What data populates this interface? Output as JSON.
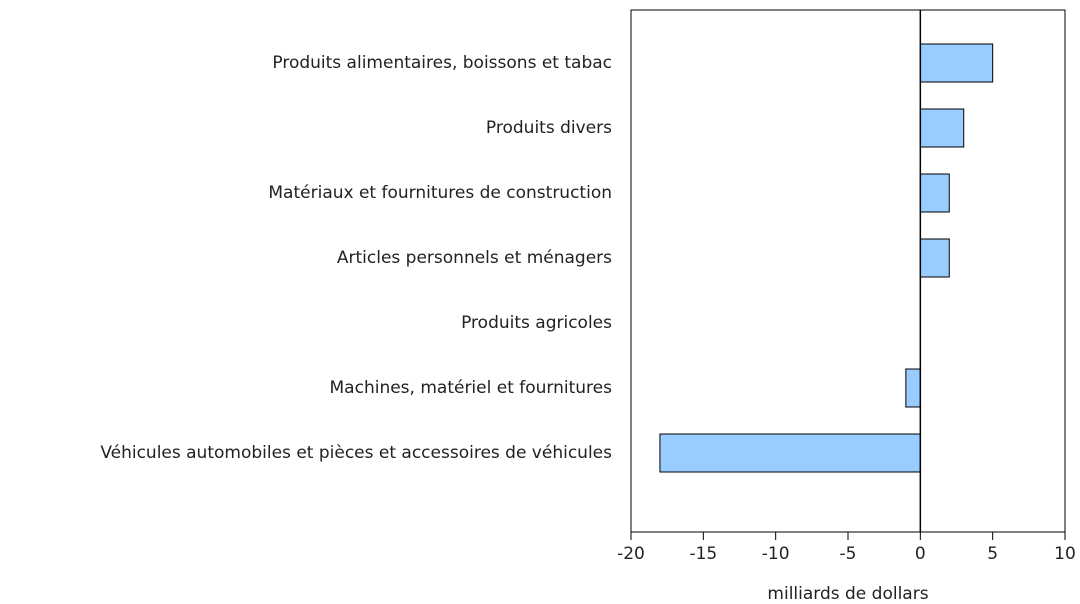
{
  "chart_data": {
    "type": "bar",
    "orientation": "horizontal",
    "categories": [
      "Produits alimentaires, boissons et tabac",
      "Produits divers",
      "Matériaux et fournitures de construction",
      "Articles personnels et ménagers",
      "Produits agricoles",
      "Machines, matériel et fournitures",
      "Véhicules automobiles et pièces et accessoires de véhicules"
    ],
    "values": [
      5,
      3,
      2,
      2,
      0,
      -1,
      -18
    ],
    "color": "#99ccff",
    "xlabel": "milliards de dollars",
    "xlim": [
      -20,
      10
    ],
    "xticks": [
      -20,
      -15,
      -10,
      -5,
      0,
      5,
      10
    ]
  }
}
